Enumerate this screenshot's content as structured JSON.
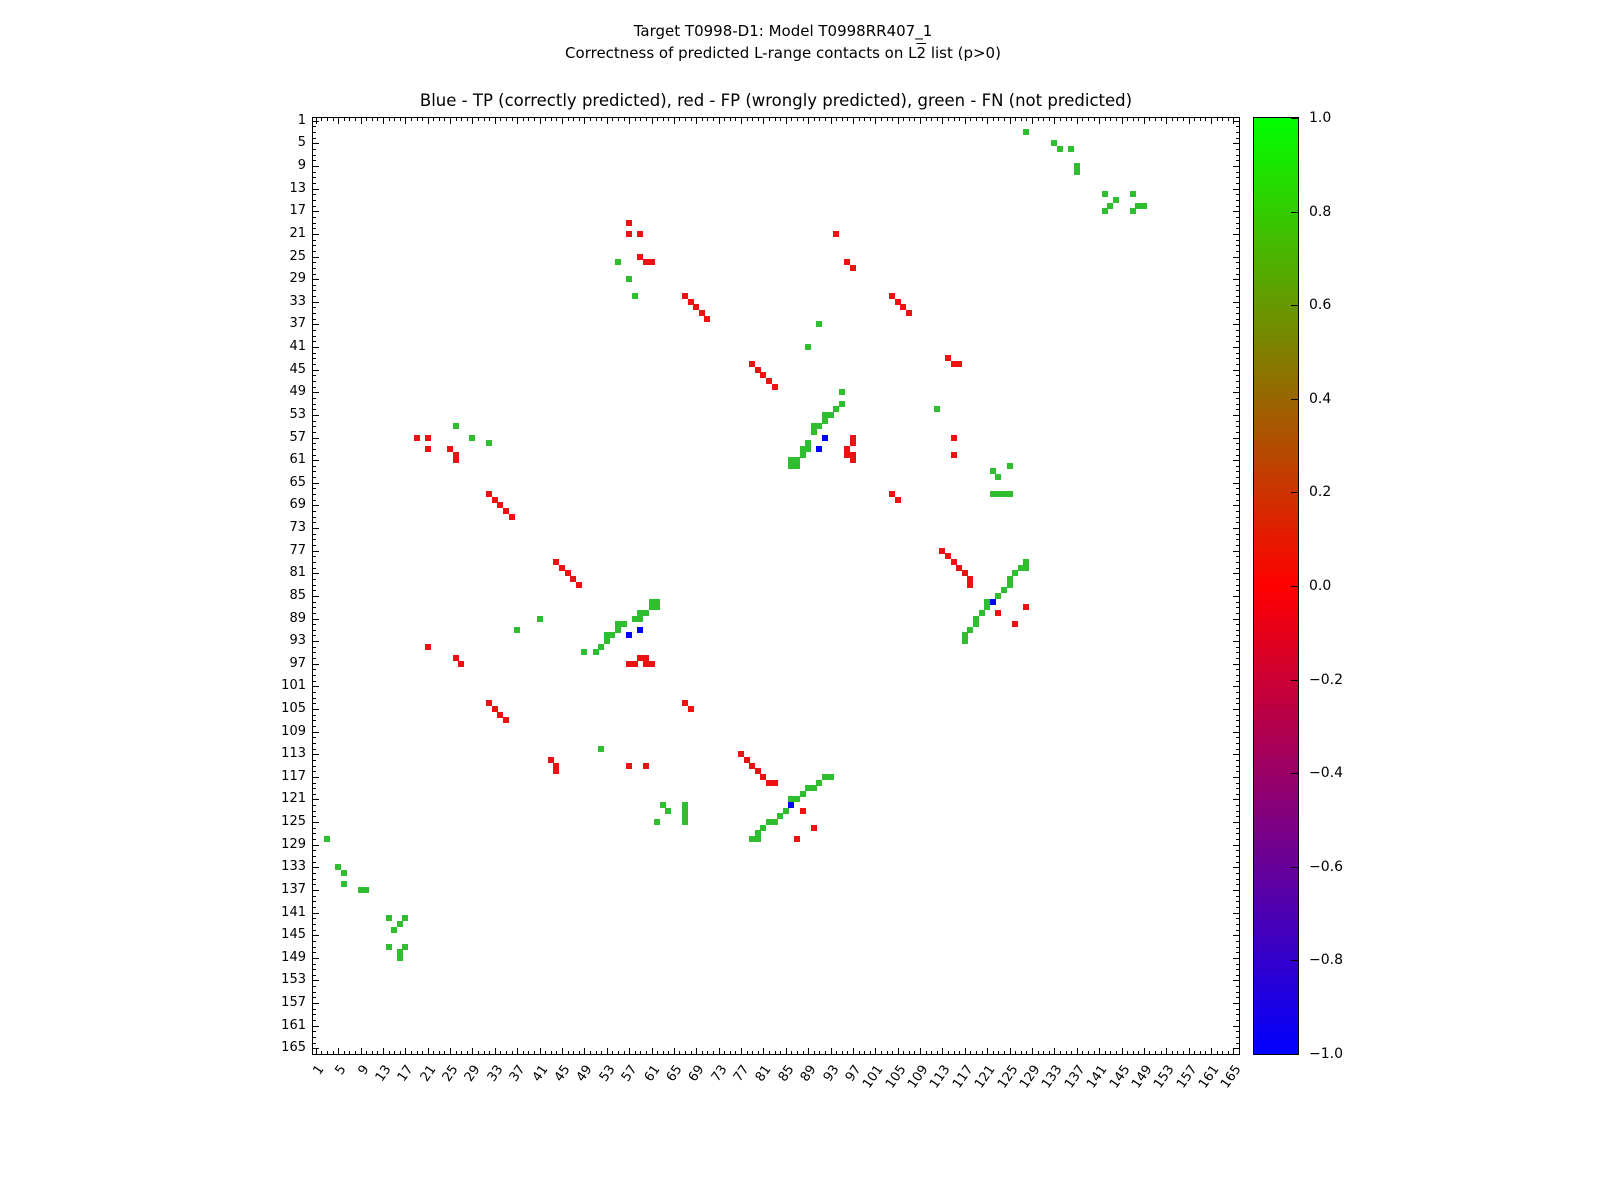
{
  "chart_data": {
    "type": "heatmap",
    "title": "Blue - TP (correctly predicted), red - FP (wrongly predicted), green - FN (not predicted)",
    "suptitle_line1": "Target T0998-D1: Model T0998RR407_1",
    "suptitle_line2_parts": {
      "pre": "Correctness of predicted L-range contacts on L",
      "over": "2",
      "post": " list (p>0)"
    },
    "xlabel": "",
    "ylabel": "",
    "x_range": [
      1,
      165
    ],
    "y_range": [
      1,
      165
    ],
    "y_axis_inverted": true,
    "grid": false,
    "symmetric_matrix": true,
    "axis_ticks": [
      1,
      5,
      9,
      13,
      17,
      21,
      25,
      29,
      33,
      37,
      41,
      45,
      49,
      53,
      57,
      61,
      65,
      69,
      73,
      77,
      81,
      85,
      89,
      93,
      97,
      101,
      105,
      109,
      113,
      117,
      121,
      125,
      129,
      133,
      137,
      141,
      145,
      149,
      153,
      157,
      161,
      165
    ],
    "classes": {
      "TP": {
        "label": "TP (correctly predicted)",
        "color": "#0000ff"
      },
      "FP": {
        "label": "FP (wrongly predicted)",
        "color": "#ee1111"
      },
      "FN": {
        "label": "FN (not predicted)",
        "color": "#2fbe2f"
      }
    },
    "points": {
      "TP": [
        [
          57,
          92
        ],
        [
          59,
          91
        ],
        [
          86,
          122
        ]
      ],
      "FP": [
        [
          19,
          57
        ],
        [
          21,
          57
        ],
        [
          21,
          59
        ],
        [
          25,
          59
        ],
        [
          26,
          60
        ],
        [
          26,
          61
        ],
        [
          21,
          94
        ],
        [
          26,
          96
        ],
        [
          27,
          97
        ],
        [
          32,
          67
        ],
        [
          33,
          68
        ],
        [
          34,
          69
        ],
        [
          35,
          70
        ],
        [
          36,
          71
        ],
        [
          32,
          104
        ],
        [
          33,
          105
        ],
        [
          34,
          106
        ],
        [
          35,
          107
        ],
        [
          43,
          114
        ],
        [
          44,
          115
        ],
        [
          44,
          116
        ],
        [
          44,
          79
        ],
        [
          45,
          80
        ],
        [
          46,
          81
        ],
        [
          47,
          82
        ],
        [
          48,
          83
        ],
        [
          57,
          115
        ],
        [
          60,
          115
        ],
        [
          57,
          97
        ],
        [
          58,
          97
        ],
        [
          59,
          96
        ],
        [
          60,
          96
        ],
        [
          60,
          97
        ],
        [
          61,
          97
        ],
        [
          67,
          104
        ],
        [
          68,
          105
        ],
        [
          77,
          113
        ],
        [
          78,
          114
        ],
        [
          79,
          115
        ],
        [
          80,
          116
        ],
        [
          81,
          117
        ],
        [
          82,
          118
        ],
        [
          83,
          118
        ],
        [
          88,
          123
        ],
        [
          90,
          126
        ],
        [
          87,
          128
        ]
      ],
      "FN": [
        [
          3,
          128
        ],
        [
          5,
          133
        ],
        [
          6,
          134
        ],
        [
          6,
          136
        ],
        [
          9,
          137
        ],
        [
          10,
          137
        ],
        [
          14,
          142
        ],
        [
          17,
          142
        ],
        [
          16,
          143
        ],
        [
          15,
          144
        ],
        [
          14,
          147
        ],
        [
          17,
          147
        ],
        [
          16,
          148
        ],
        [
          16,
          149
        ],
        [
          26,
          55
        ],
        [
          29,
          57
        ],
        [
          32,
          58
        ],
        [
          37,
          91
        ],
        [
          41,
          89
        ],
        [
          52,
          112
        ],
        [
          49,
          95
        ],
        [
          51,
          95
        ],
        [
          52,
          94
        ],
        [
          53,
          93
        ],
        [
          53,
          92
        ],
        [
          54,
          92
        ],
        [
          55,
          91
        ],
        [
          55,
          90
        ],
        [
          56,
          90
        ],
        [
          58,
          89
        ],
        [
          59,
          89
        ],
        [
          59,
          88
        ],
        [
          60,
          88
        ],
        [
          61,
          87
        ],
        [
          62,
          87
        ],
        [
          61,
          86
        ],
        [
          62,
          86
        ],
        [
          62,
          125
        ],
        [
          63,
          122
        ],
        [
          64,
          123
        ],
        [
          67,
          122
        ],
        [
          67,
          123
        ],
        [
          67,
          124
        ],
        [
          67,
          125
        ],
        [
          79,
          128
        ],
        [
          80,
          128
        ],
        [
          80,
          127
        ],
        [
          81,
          126
        ],
        [
          82,
          125
        ],
        [
          83,
          125
        ],
        [
          84,
          124
        ],
        [
          85,
          123
        ],
        [
          86,
          121
        ],
        [
          87,
          121
        ],
        [
          88,
          120
        ],
        [
          89,
          119
        ],
        [
          90,
          119
        ],
        [
          91,
          118
        ],
        [
          92,
          117
        ],
        [
          93,
          117
        ]
      ]
    },
    "colorbar": {
      "tick_labels": [
        "1.0",
        "0.8",
        "0.6",
        "0.4",
        "0.2",
        "0.0",
        "−0.2",
        "−0.4",
        "−0.6",
        "−0.8",
        "−1.0"
      ],
      "top_color": "#00ff00",
      "mid_color": "#ff0000",
      "bottom_color": "#0000ff",
      "range": [
        -1.0,
        1.0
      ]
    }
  }
}
